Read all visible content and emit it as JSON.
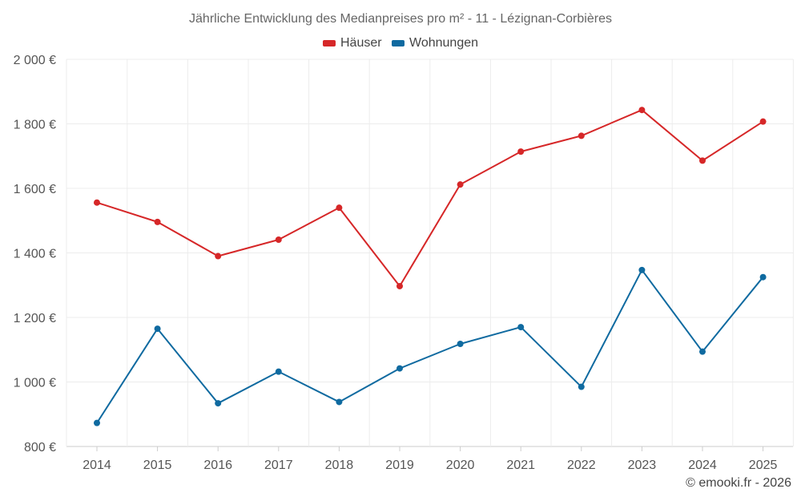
{
  "chart_data": {
    "type": "line",
    "title": "Jährliche Entwicklung des Medianpreises pro m² - 11 - Lézignan-Corbières",
    "categories": [
      "2014",
      "2015",
      "2016",
      "2017",
      "2018",
      "2019",
      "2020",
      "2021",
      "2022",
      "2023",
      "2024",
      "2025"
    ],
    "ylim": [
      800,
      2000
    ],
    "ytick_values": [
      800,
      1000,
      1200,
      1400,
      1600,
      1800,
      2000
    ],
    "ytick_labels": [
      "800 €",
      "1 000 €",
      "1 200 €",
      "1 400 €",
      "1 600 €",
      "1 800 €",
      "2 000 €"
    ],
    "xlabel": "",
    "ylabel": "",
    "grid": true,
    "legend_position": "top-center",
    "series": [
      {
        "name": "Häuser",
        "color": "#d62728",
        "values": [
          1556,
          1496,
          1390,
          1441,
          1540,
          1297,
          1612,
          1714,
          1763,
          1843,
          1686,
          1807
        ]
      },
      {
        "name": "Wohnungen",
        "color": "#0f6aa0",
        "values": [
          873,
          1165,
          934,
          1032,
          938,
          1042,
          1118,
          1170,
          985,
          1347,
          1094,
          1325
        ]
      }
    ]
  },
  "footer": {
    "credit": "© emooki.fr - 2026"
  }
}
